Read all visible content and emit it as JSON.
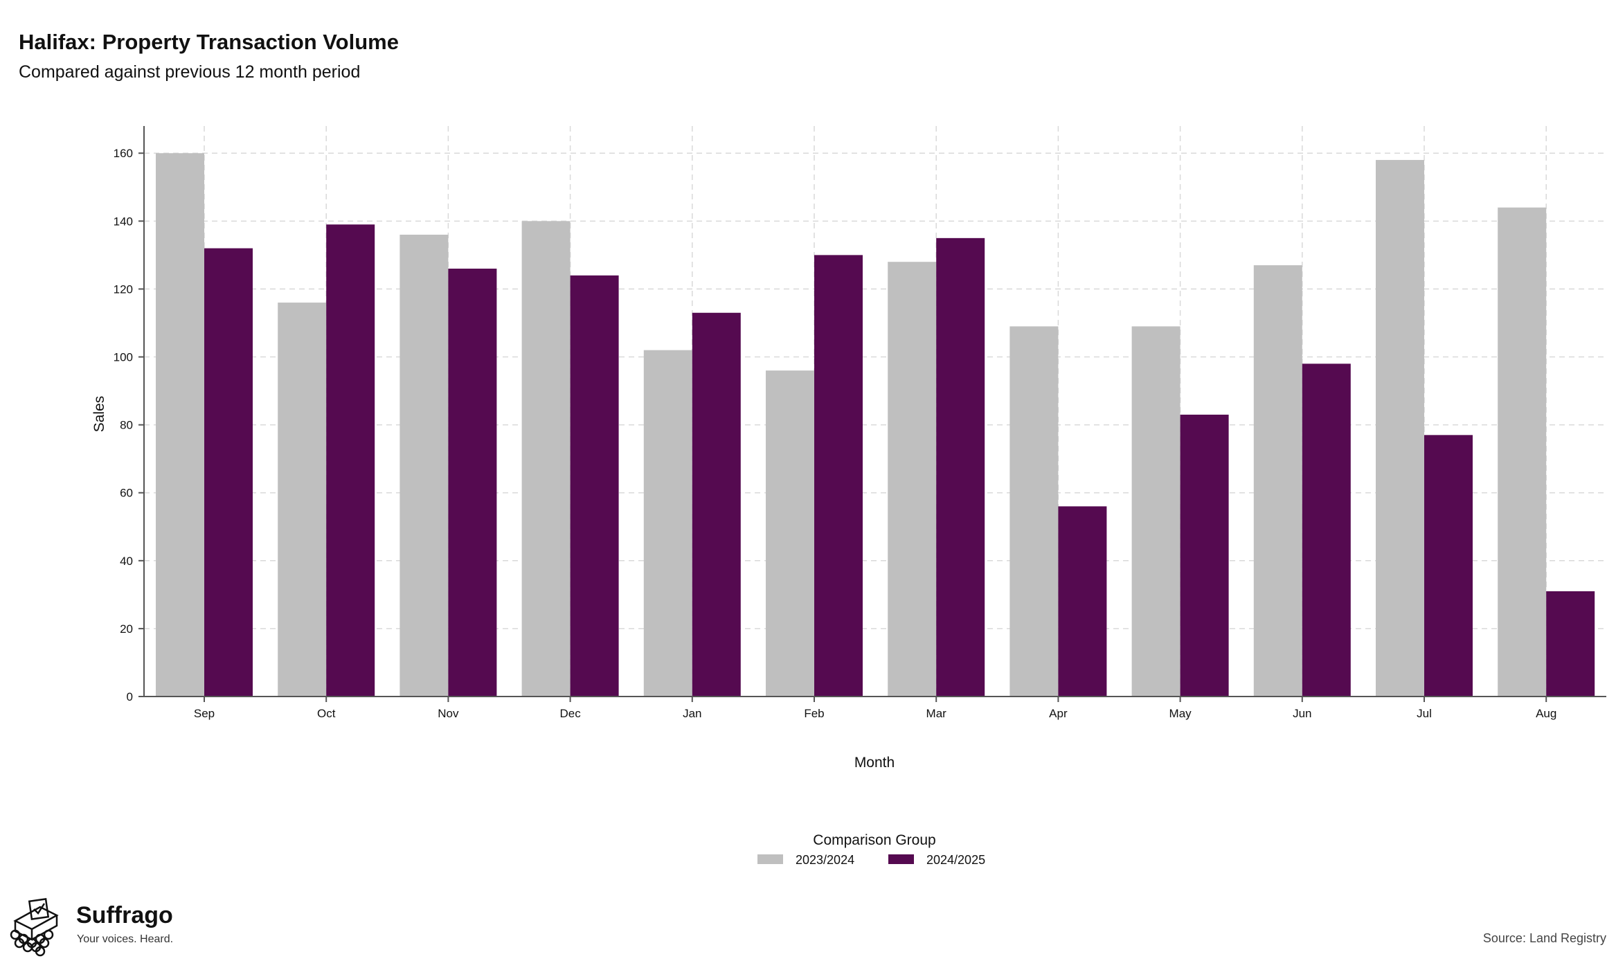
{
  "header": {
    "title": "Halifax: Property Transaction Volume",
    "subtitle": "Compared against previous 12 month period"
  },
  "chart_data": {
    "type": "bar",
    "title": "Halifax: Property Transaction Volume",
    "subtitle": "Compared against previous 12 month period",
    "xlabel": "Month",
    "ylabel": "Sales",
    "categories": [
      "Sep",
      "Oct",
      "Nov",
      "Dec",
      "Jan",
      "Feb",
      "Mar",
      "Apr",
      "May",
      "Jun",
      "Jul",
      "Aug"
    ],
    "series": [
      {
        "name": "2023/2024",
        "color": "#bfbfbf",
        "values": [
          160,
          116,
          136,
          140,
          102,
          96,
          128,
          109,
          109,
          127,
          158,
          144
        ]
      },
      {
        "name": "2024/2025",
        "color": "#550a50",
        "values": [
          132,
          139,
          126,
          124,
          113,
          130,
          135,
          56,
          83,
          98,
          77,
          31
        ]
      }
    ],
    "ylim": [
      0,
      168
    ],
    "yticks": [
      0,
      20,
      40,
      60,
      80,
      100,
      120,
      140,
      160
    ],
    "grid": true,
    "legend": {
      "title": "Comparison Group",
      "placement": "bottom-center"
    }
  },
  "footer": {
    "brand": "Suffrago",
    "tagline": "Your voices. Heard.",
    "logo_icon": "ballot-box-icon",
    "source": "Source: Land Registry"
  }
}
